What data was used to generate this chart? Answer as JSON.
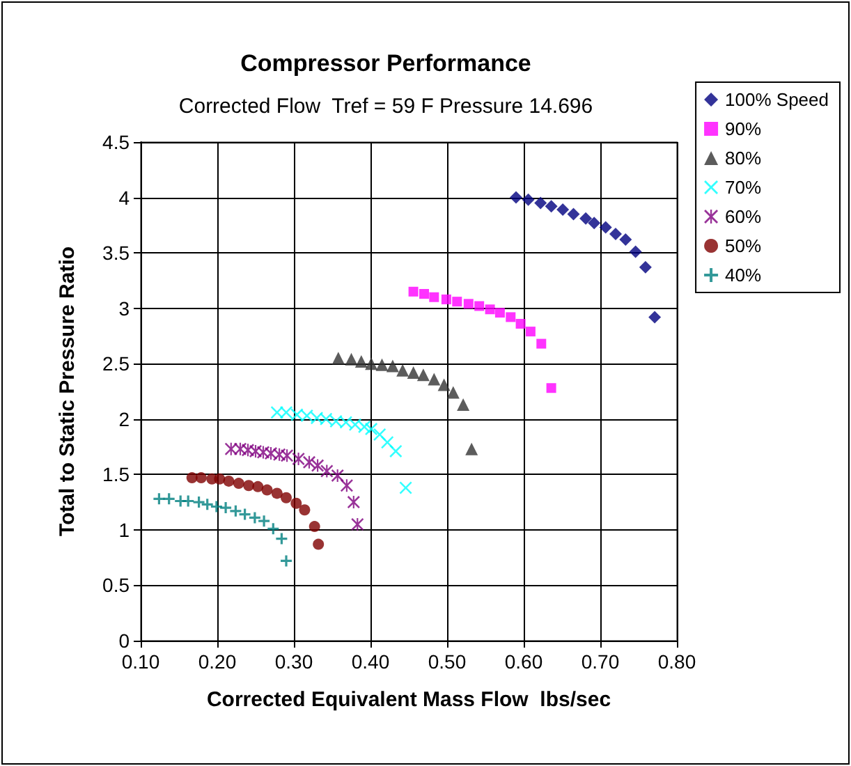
{
  "chart_data": {
    "type": "scatter",
    "title": "Compressor Performance",
    "subtitle": "Corrected Flow  Tref = 59 F Pressure 14.696",
    "xlabel": "Corrected Equivalent Mass Flow  lbs/sec",
    "ylabel": "Total to Static Pressure Ratio",
    "xlim": [
      0.1,
      0.8
    ],
    "xticks": [
      {
        "value": 0.1,
        "label": "0.10"
      },
      {
        "value": 0.2,
        "label": "0.20"
      },
      {
        "value": 0.3,
        "label": "0.30"
      },
      {
        "value": 0.4,
        "label": "0.40"
      },
      {
        "value": 0.5,
        "label": "0.50"
      },
      {
        "value": 0.6,
        "label": "0.60"
      },
      {
        "value": 0.7,
        "label": "0.70"
      },
      {
        "value": 0.8,
        "label": "0.80"
      }
    ],
    "ylim": [
      0,
      4.5
    ],
    "yticks": [
      0,
      0.5,
      1,
      1.5,
      2,
      2.5,
      3,
      3.5,
      4,
      4.5
    ],
    "grid": true,
    "legend": "top right",
    "series": [
      {
        "name": "100% Speed",
        "color": "#000080",
        "marker": "diamond",
        "x": [
          0.59,
          0.606,
          0.622,
          0.636,
          0.651,
          0.665,
          0.681,
          0.692,
          0.707,
          0.72,
          0.733,
          0.746,
          0.759,
          0.771
        ],
        "values": [
          4.0,
          3.98,
          3.95,
          3.92,
          3.89,
          3.85,
          3.81,
          3.77,
          3.73,
          3.67,
          3.62,
          3.51,
          3.37,
          2.92
        ]
      },
      {
        "name": "90%",
        "color": "#ff00ff",
        "marker": "square",
        "x": [
          0.456,
          0.47,
          0.483,
          0.499,
          0.513,
          0.528,
          0.542,
          0.556,
          0.569,
          0.583,
          0.596,
          0.609,
          0.623,
          0.636
        ],
        "values": [
          3.15,
          3.13,
          3.1,
          3.08,
          3.06,
          3.04,
          3.02,
          2.99,
          2.96,
          2.92,
          2.86,
          2.79,
          2.68,
          2.28
        ]
      },
      {
        "name": "80%",
        "color": "#333333",
        "marker": "triangle",
        "x": [
          0.358,
          0.375,
          0.388,
          0.401,
          0.415,
          0.429,
          0.442,
          0.456,
          0.469,
          0.483,
          0.496,
          0.508,
          0.521,
          0.532
        ],
        "values": [
          2.55,
          2.54,
          2.52,
          2.5,
          2.49,
          2.48,
          2.44,
          2.42,
          2.4,
          2.36,
          2.31,
          2.24,
          2.13,
          1.73
        ]
      },
      {
        "name": "70%",
        "color": "#00ffff",
        "marker": "x",
        "x": [
          0.278,
          0.29,
          0.304,
          0.317,
          0.33,
          0.342,
          0.355,
          0.368,
          0.38,
          0.392,
          0.401,
          0.412,
          0.422,
          0.433,
          0.446
        ],
        "values": [
          2.06,
          2.06,
          2.04,
          2.03,
          2.01,
          2.0,
          1.98,
          1.97,
          1.95,
          1.93,
          1.91,
          1.86,
          1.79,
          1.71,
          1.38
        ]
      },
      {
        "name": "60%",
        "color": "#800080",
        "marker": "star",
        "x": [
          0.218,
          0.23,
          0.24,
          0.25,
          0.26,
          0.27,
          0.281,
          0.291,
          0.306,
          0.32,
          0.331,
          0.343,
          0.357,
          0.369,
          0.378,
          0.383
        ],
        "values": [
          1.73,
          1.73,
          1.72,
          1.71,
          1.7,
          1.69,
          1.68,
          1.67,
          1.64,
          1.61,
          1.58,
          1.53,
          1.49,
          1.4,
          1.25,
          1.05
        ]
      },
      {
        "name": "50%",
        "color": "#800000",
        "marker": "circle",
        "x": [
          0.167,
          0.179,
          0.193,
          0.203,
          0.215,
          0.228,
          0.241,
          0.253,
          0.265,
          0.278,
          0.29,
          0.303,
          0.314,
          0.327,
          0.332
        ],
        "values": [
          1.47,
          1.47,
          1.46,
          1.46,
          1.44,
          1.42,
          1.4,
          1.39,
          1.36,
          1.33,
          1.29,
          1.24,
          1.18,
          1.03,
          0.87
        ]
      },
      {
        "name": "40%",
        "color": "#008080",
        "marker": "cross",
        "x": [
          0.124,
          0.137,
          0.152,
          0.162,
          0.176,
          0.187,
          0.199,
          0.211,
          0.224,
          0.236,
          0.249,
          0.261,
          0.273,
          0.284,
          0.29
        ],
        "values": [
          1.28,
          1.28,
          1.26,
          1.26,
          1.25,
          1.23,
          1.21,
          1.2,
          1.17,
          1.14,
          1.11,
          1.08,
          1.01,
          0.92,
          0.72
        ]
      }
    ]
  }
}
